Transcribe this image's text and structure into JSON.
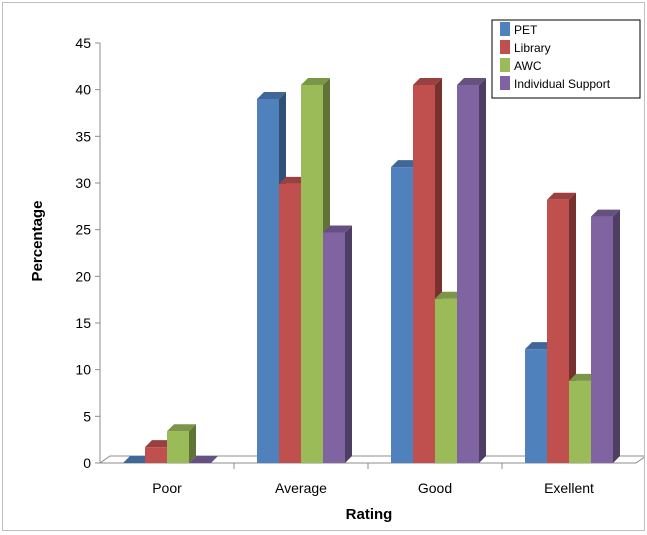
{
  "chart_data": {
    "type": "bar",
    "style": "3d-clustered-column",
    "xlabel": "Rating",
    "ylabel": "Percentage",
    "categories": [
      "Poor",
      "Average",
      "Good",
      "Exellent"
    ],
    "ylim": [
      0,
      45
    ],
    "yticks": [
      0,
      5,
      10,
      15,
      20,
      25,
      30,
      35,
      40,
      45
    ],
    "grid": false,
    "legend_position": "top-right",
    "series": [
      {
        "name": "PET",
        "color": "#4f81bd",
        "values": [
          0,
          39,
          31.7,
          12.2
        ]
      },
      {
        "name": "Library",
        "color": "#c0504d",
        "values": [
          1.7,
          29.9,
          40.5,
          28.2
        ]
      },
      {
        "name": "AWC",
        "color": "#9bbb59",
        "values": [
          3.4,
          40.5,
          17.6,
          8.8
        ]
      },
      {
        "name": "Individual Support",
        "color": "#8064a2",
        "values": [
          0,
          24.7,
          40.5,
          26.4
        ]
      }
    ]
  }
}
